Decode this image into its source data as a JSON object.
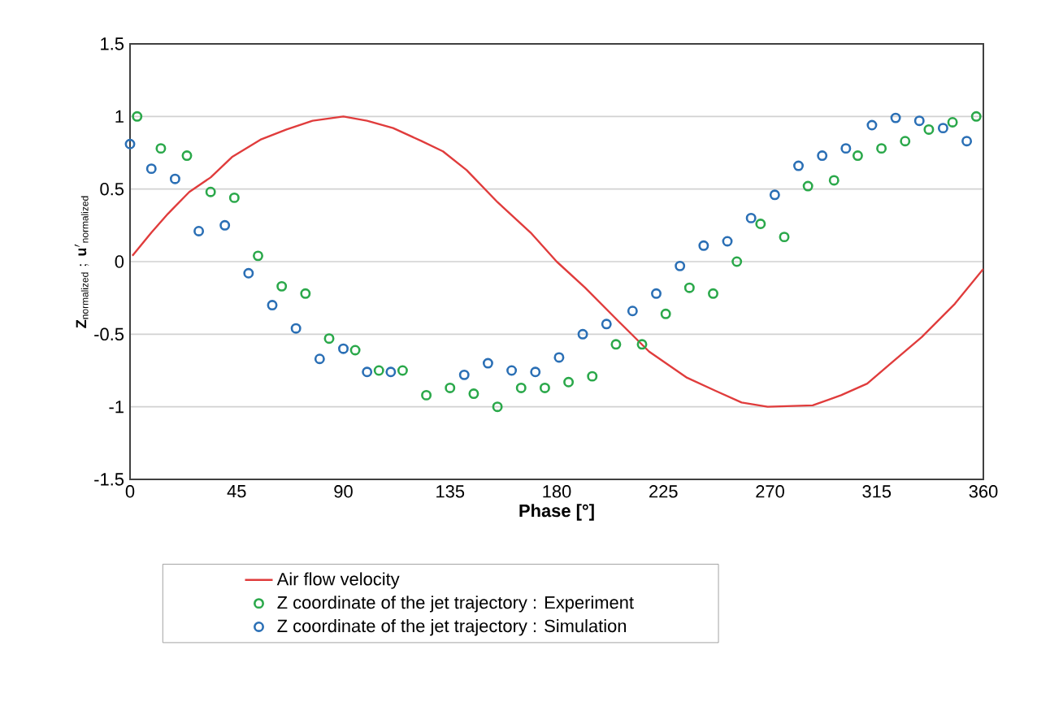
{
  "chart_data": {
    "type": "scatter",
    "xlabel": "Phase [°]",
    "ylabel": "\\mathbf{Z}_{\\mathrm{normalized}}\\ ;\\ \\mathbf{u'}_{\\mathrm{normalized}}",
    "xlim": [
      0,
      360
    ],
    "xticks": [
      0,
      45,
      90,
      135,
      180,
      225,
      270,
      315,
      360
    ],
    "ylim": [
      -1.5,
      1.5
    ],
    "yticks": [
      -1.5,
      -1,
      -0.5,
      0,
      0.5,
      1,
      1.5
    ],
    "grid": "y",
    "legend": "bottom",
    "series": [
      {
        "name": "Air flow velocity",
        "type": "line",
        "marker": "none",
        "line_style": "solid",
        "color": "#e03c3c",
        "x": [
          1,
          9,
          16,
          25,
          34,
          43,
          55,
          66,
          77,
          90,
          100,
          111,
          123,
          132,
          142,
          155,
          169,
          180,
          192,
          206,
          219,
          235,
          247,
          258,
          269,
          288,
          300,
          311,
          321,
          334,
          348,
          360
        ],
        "values": [
          0.04,
          0.2,
          0.33,
          0.48,
          0.58,
          0.72,
          0.84,
          0.91,
          0.97,
          1.0,
          0.97,
          0.92,
          0.83,
          0.76,
          0.63,
          0.41,
          0.2,
          0.0,
          -0.18,
          -0.41,
          -0.62,
          -0.8,
          -0.89,
          -0.97,
          -1.0,
          -0.99,
          -0.92,
          -0.84,
          -0.7,
          -0.52,
          -0.29,
          -0.05
        ]
      },
      {
        "name": "Z coordinate of the jet trajectory : Experiment",
        "marker": "circle",
        "color": "#2aa84a",
        "x": [
          3,
          13,
          24,
          34,
          44,
          54,
          64,
          74,
          84,
          95,
          105,
          115,
          125,
          135,
          145,
          155,
          165,
          175,
          185,
          195,
          205,
          216,
          226,
          236,
          246,
          256,
          266,
          276,
          286,
          297,
          307,
          317,
          327,
          337,
          347,
          357
        ],
        "values": [
          1.0,
          0.78,
          0.73,
          0.48,
          0.44,
          0.04,
          -0.17,
          -0.22,
          -0.53,
          -0.61,
          -0.75,
          -0.75,
          -0.92,
          -0.87,
          -0.91,
          -1.0,
          -0.87,
          -0.87,
          -0.83,
          -0.79,
          -0.57,
          -0.57,
          -0.36,
          -0.18,
          -0.22,
          0.0,
          0.26,
          0.17,
          0.52,
          0.56,
          0.73,
          0.78,
          0.83,
          0.91,
          0.96,
          1.0
        ]
      },
      {
        "name": "Z coordinate of the jet trajectory : Simulation",
        "marker": "circle",
        "color": "#2a6fb5",
        "x": [
          0,
          9,
          19,
          29,
          40,
          50,
          60,
          70,
          80,
          90,
          100,
          110,
          141,
          151,
          161,
          171,
          181,
          191,
          201,
          212,
          222,
          232,
          242,
          252,
          262,
          272,
          282,
          292,
          302,
          313,
          323,
          333,
          343,
          353
        ],
        "values": [
          0.81,
          0.64,
          0.57,
          0.21,
          0.25,
          -0.08,
          -0.3,
          -0.46,
          -0.67,
          -0.6,
          -0.76,
          -0.76,
          -0.78,
          -0.7,
          -0.75,
          -0.76,
          -0.66,
          -0.5,
          -0.43,
          -0.34,
          -0.22,
          -0.03,
          0.11,
          0.14,
          0.3,
          0.46,
          0.66,
          0.73,
          0.78,
          0.94,
          0.99,
          0.97,
          0.92,
          0.83
        ]
      }
    ]
  }
}
